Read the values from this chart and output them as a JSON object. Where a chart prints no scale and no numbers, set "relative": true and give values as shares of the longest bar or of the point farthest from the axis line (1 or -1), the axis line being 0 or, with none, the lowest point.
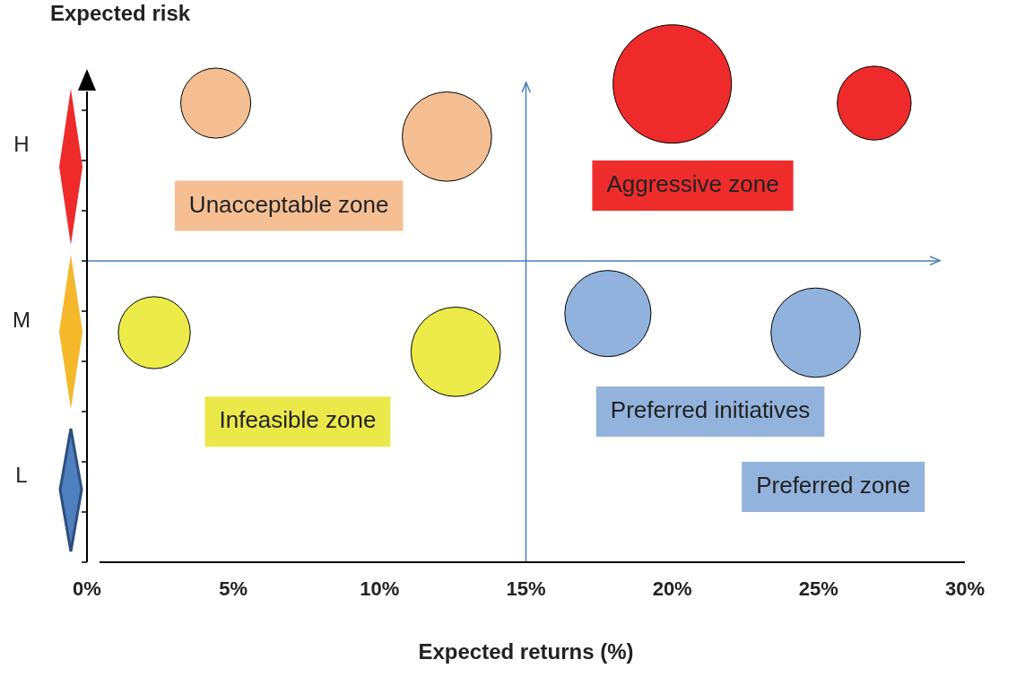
{
  "chart_data": {
    "type": "bubble",
    "xlabel": "Expected returns (%)",
    "ylabel": "Expected risk",
    "series": [
      {
        "color": "#f4be92",
        "x": [
          4.4,
          12.3
        ],
        "values": [
          0.96,
          0.89
        ],
        "sizes": [
          0.35,
          0.57
        ]
      },
      {
        "color": "#ee2a2a",
        "x": [
          20.0,
          26.9
        ],
        "values": [
          1,
          0.96
        ],
        "sizes": [
          1,
          0.39
        ]
      },
      {
        "color": "#eceb4a",
        "x": [
          2.3,
          12.6
        ],
        "values": [
          0.48,
          0.44
        ],
        "sizes": [
          0.37,
          0.57
        ]
      },
      {
        "color": "#91b2dd",
        "x": [
          17.8,
          24.9
        ],
        "values": [
          0.52,
          0.48
        ],
        "sizes": [
          0.53,
          0.57
        ]
      }
    ],
    "xlim": [
      0,
      30
    ],
    "xticks": [
      {
        "value": 0,
        "label": "0%"
      },
      {
        "value": 5,
        "label": "5%"
      },
      {
        "value": 10,
        "label": "10%"
      },
      {
        "value": 15,
        "label": "15%"
      },
      {
        "value": 20,
        "label": "20%"
      },
      {
        "value": 25,
        "label": "25%"
      },
      {
        "value": 30,
        "label": "30%"
      }
    ],
    "relative": true,
    "ref_lines": [
      {
        "axis": "x",
        "value": 15,
        "color": "#4a7ebb"
      },
      {
        "axis": "y",
        "value": 0.63,
        "color": "#4a7ebb"
      }
    ],
    "annotations": [
      "Unacceptable zone",
      "Aggressive zone",
      "Infeasible zone",
      "Preferred initiatives",
      "Preferred zone",
      "H",
      "M",
      "L"
    ],
    "grid": false,
    "legend": false
  }
}
